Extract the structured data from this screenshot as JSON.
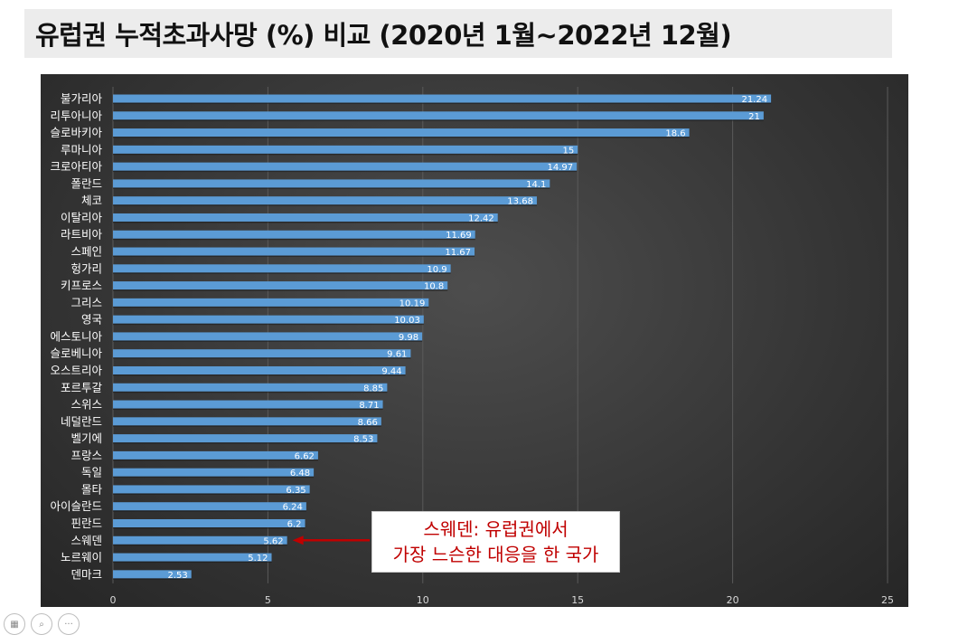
{
  "title": "유럽권 누적초과사망 (%) 비교 (2020년 1월~2022년 12월)",
  "callout": {
    "line1": "스웨덴: 유럽권에서",
    "line2": "가장 느슨한 대응을 한 국가"
  },
  "colors": {
    "bar": "#5b9bd5",
    "panel_background": "#3a3a3a",
    "callout_text": "#c00000",
    "arrow": "#c00000"
  },
  "bottom_icons": [
    "slides-icon",
    "zoom-icon",
    "more-icon"
  ],
  "chart_data": {
    "type": "bar",
    "orientation": "horizontal",
    "title": "유럽권 누적초과사망 (%) 비교 (2020년 1월~2022년 12월)",
    "categories": [
      "불가리아",
      "리투아니아",
      "슬로바키아",
      "루마니아",
      "크로아티아",
      "폴란드",
      "체코",
      "이탈리아",
      "라트비아",
      "스페인",
      "헝가리",
      "키프로스",
      "그리스",
      "영국",
      "에스토니아",
      "슬로베니아",
      "오스트리아",
      "포르투갈",
      "스위스",
      "네덜란드",
      "벨기에",
      "프랑스",
      "독일",
      "몰타",
      "아이슬란드",
      "핀란드",
      "스웨덴",
      "노르웨이",
      "덴마크"
    ],
    "values": [
      21.24,
      21,
      18.6,
      15,
      14.97,
      14.1,
      13.68,
      12.42,
      11.69,
      11.67,
      10.9,
      10.8,
      10.19,
      10.03,
      9.98,
      9.61,
      9.44,
      8.85,
      8.71,
      8.66,
      8.53,
      6.62,
      6.48,
      6.35,
      6.24,
      6.2,
      5.62,
      5.12,
      2.53
    ],
    "xlim": [
      0,
      25
    ],
    "xticks": [
      0,
      5,
      10,
      15,
      20,
      25
    ],
    "grid": "vertical",
    "data_labels": true,
    "highlight_category": "스웨덴"
  }
}
